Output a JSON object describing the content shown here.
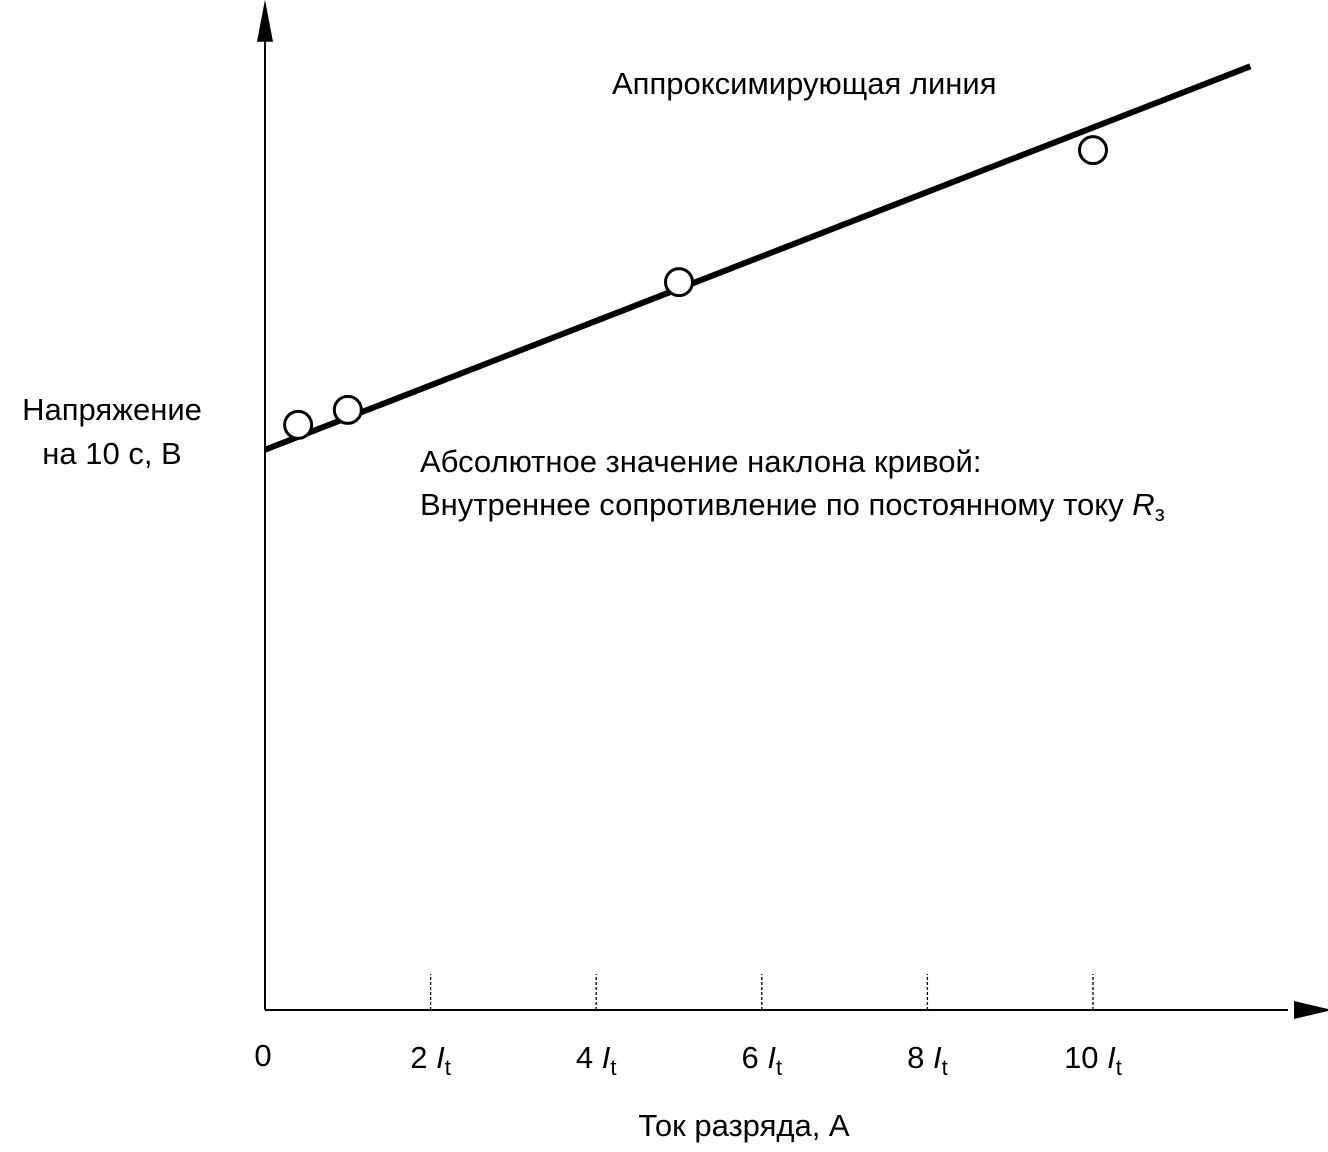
{
  "chart_data": {
    "type": "scatter",
    "xlabel": "Ток разряда, А",
    "ylabel_line1": "Напряжение",
    "ylabel_line2": "на 10 с, В",
    "origin_label": "0",
    "x_ticks": [
      {
        "value": 2,
        "coef": "2",
        "symbol": "I",
        "subscript": "t"
      },
      {
        "value": 4,
        "coef": "4",
        "symbol": "I",
        "subscript": "t"
      },
      {
        "value": 6,
        "coef": "6",
        "symbol": "I",
        "subscript": "t"
      },
      {
        "value": 8,
        "coef": "8",
        "symbol": "I",
        "subscript": "t"
      },
      {
        "value": 10,
        "coef": "10",
        "symbol": "I",
        "subscript": "t"
      }
    ],
    "xlim": [
      0,
      12.5
    ],
    "ylim": [
      0,
      12.1
    ],
    "series": [
      {
        "values": [
          [
            0.4,
            7.05
          ],
          [
            1.0,
            7.23
          ],
          [
            5.0,
            8.77
          ],
          [
            10.0,
            10.36
          ]
        ]
      }
    ],
    "fit_line": {
      "x": [
        0,
        11.9
      ],
      "y": [
        6.75,
        11.37
      ]
    },
    "annotations": {
      "fit_label": "Аппроксимирующая линия",
      "slope_line1": "Абсолютное значение наклона кривой:",
      "slope_line2": "Внутреннее сопротивление по постоянному току ",
      "slope_symbol": "R",
      "slope_subscript": "з"
    },
    "colors": {
      "ink": "#000000",
      "marker_fill": "#ffffff",
      "background": "#ffffff"
    }
  }
}
